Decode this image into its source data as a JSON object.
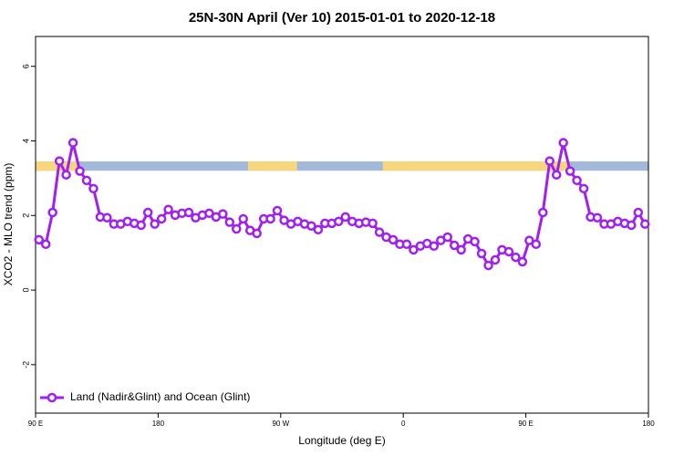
{
  "chart_data": {
    "type": "line",
    "title": "25N-30N April (Ver 10)   2015-01-01 to 2020-12-18",
    "xlabel": "Longitude (deg E)",
    "ylabel": "XCO2 - MLO trend (ppm)",
    "xlim": [
      90,
      540
    ],
    "ylim": [
      -3.3,
      6.8
    ],
    "xticks": [
      {
        "value": 90,
        "label": "90 E"
      },
      180,
      {
        "value": 270,
        "label": "90 W"
      },
      {
        "value": 360,
        "label": "0"
      },
      {
        "value": 450,
        "label": "90 E"
      },
      {
        "value": 540,
        "label": "180"
      }
    ],
    "yticks": [
      -2,
      0,
      2,
      4,
      6
    ],
    "legend": "bottom-left",
    "band": {
      "ylim": [
        3.2,
        3.45
      ],
      "color": "#a3b9d9",
      "land_color": "#f7d67c",
      "land": [
        [
          90,
          121
        ],
        [
          246,
          282
        ],
        [
          345,
          482
        ]
      ]
    },
    "x": [
      92.5,
      97.5,
      102.5,
      107.5,
      112.5,
      117.5,
      122.5,
      127.5,
      132.5,
      137.5,
      142.5,
      147.5,
      152.5,
      157.5,
      162.5,
      167.5,
      172.5,
      177.5,
      182.5,
      187.5,
      192.5,
      197.5,
      202.5,
      207.5,
      212.5,
      217.5,
      222.5,
      227.5,
      232.5,
      237.5,
      242.5,
      247.5,
      252.5,
      257.5,
      262.5,
      267.5,
      272.5,
      277.5,
      282.5,
      287.5,
      292.5,
      297.5,
      302.5,
      307.5,
      312.5,
      317.5,
      322.5,
      327.5,
      332.5,
      337.5,
      342.5,
      347.5,
      352.5,
      357.5,
      362.5,
      367.5,
      372.5,
      377.5,
      382.5,
      387.5,
      392.5,
      397.5,
      402.5,
      407.5,
      412.5,
      417.5,
      422.5,
      427.5,
      432.5,
      437.5,
      442.5,
      447.5,
      452.5,
      457.5,
      462.5,
      467.5,
      472.5,
      477.5,
      482.5,
      487.5,
      492.5,
      497.5,
      502.5,
      507.5,
      512.5,
      517.5,
      522.5,
      527.5,
      532.5,
      537.5
    ],
    "series": [
      {
        "name": "Land (Nadir&Glint) and Ocean (Glint)",
        "color": "#a020f0",
        "values": [
          1.35,
          1.23,
          2.08,
          3.46,
          3.09,
          3.95,
          3.19,
          2.94,
          2.72,
          1.96,
          1.94,
          1.77,
          1.77,
          1.84,
          1.79,
          1.74,
          2.08,
          1.77,
          1.91,
          2.16,
          2.01,
          2.06,
          2.08,
          1.94,
          2.01,
          2.06,
          1.96,
          2.04,
          1.82,
          1.64,
          1.91,
          1.6,
          1.52,
          1.91,
          1.91,
          2.13,
          1.87,
          1.77,
          1.84,
          1.77,
          1.72,
          1.62,
          1.79,
          1.79,
          1.84,
          1.96,
          1.84,
          1.79,
          1.82,
          1.79,
          1.55,
          1.42,
          1.35,
          1.23,
          1.23,
          1.08,
          1.18,
          1.25,
          1.18,
          1.33,
          1.42,
          1.2,
          1.08,
          1.37,
          1.3,
          0.98,
          0.66,
          0.81,
          1.08,
          1.03,
          0.88,
          0.76,
          1.33,
          1.23,
          2.08,
          3.46,
          3.09,
          3.95,
          3.19,
          2.94,
          2.72,
          1.96,
          1.94,
          1.77,
          1.77,
          1.84,
          1.79,
          1.74,
          2.08,
          1.77
        ]
      }
    ]
  }
}
